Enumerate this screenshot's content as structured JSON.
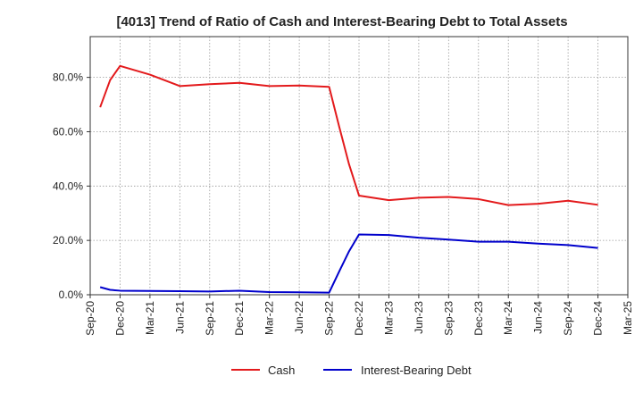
{
  "chart_data": {
    "type": "line",
    "title": "[4013]  Trend of Ratio of Cash and Interest-Bearing Debt to Total Assets",
    "xlabel": "",
    "ylabel": "",
    "ylim": [
      0,
      95
    ],
    "yticks": [
      0,
      20,
      40,
      60,
      80
    ],
    "ytick_labels": [
      "0.0%",
      "20.0%",
      "40.0%",
      "60.0%",
      "80.0%"
    ],
    "xlim": [
      0,
      54
    ],
    "xticks": [
      0,
      3,
      6,
      9,
      12,
      15,
      18,
      21,
      24,
      27,
      30,
      33,
      36,
      39,
      42,
      45,
      48,
      51,
      54
    ],
    "xtick_labels": [
      "Sep-20",
      "Dec-20",
      "Mar-21",
      "Jun-21",
      "Sep-21",
      "Dec-21",
      "Mar-22",
      "Jun-22",
      "Sep-22",
      "Dec-22",
      "Mar-23",
      "Jun-23",
      "Sep-23",
      "Dec-23",
      "Mar-24",
      "Jun-24",
      "Sep-24",
      "Dec-24",
      "Mar-25"
    ],
    "grid": true,
    "legend_position": "bottom-center",
    "series": [
      {
        "name": "Cash",
        "color": "#e31a1c",
        "x": [
          1,
          2,
          3,
          6,
          9,
          12,
          15,
          18,
          21,
          24,
          25,
          26,
          27,
          30,
          33,
          36,
          39,
          42,
          45,
          48,
          51
        ],
        "values": [
          69.0,
          79.0,
          84.2,
          81.0,
          76.8,
          77.5,
          78.0,
          76.8,
          77.0,
          76.5,
          62.0,
          48.0,
          36.5,
          34.8,
          35.7,
          36.0,
          35.2,
          33.0,
          33.5,
          34.6,
          33.1
        ]
      },
      {
        "name": "Interest-Bearing Debt",
        "color": "#0000cc",
        "x": [
          1,
          2,
          3,
          6,
          9,
          12,
          15,
          18,
          21,
          24,
          25,
          26,
          27,
          30,
          33,
          36,
          39,
          42,
          45,
          48,
          51
        ],
        "values": [
          2.8,
          1.8,
          1.5,
          1.4,
          1.3,
          1.2,
          1.5,
          1.0,
          0.9,
          0.8,
          8.5,
          16.0,
          22.2,
          22.0,
          21.0,
          20.3,
          19.5,
          19.5,
          18.8,
          18.3,
          17.2
        ]
      }
    ]
  }
}
